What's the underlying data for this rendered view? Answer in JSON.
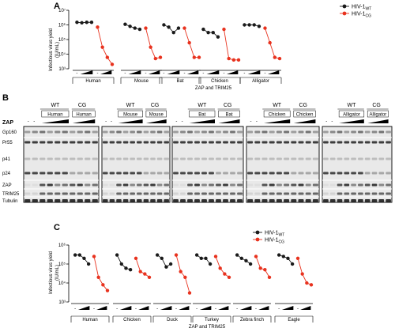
{
  "panel_labels": {
    "a": "A",
    "b": "B",
    "c": "C"
  },
  "colors": {
    "wt": "#1a1a1a",
    "cg": "#e8321e",
    "gel_bg": "#e9e9e9"
  },
  "panelA": {
    "ylabel": "Infectious virus yield",
    "yunit": "(IU/mL)",
    "yticks": [
      "10⁷",
      "10⁶",
      "10⁵",
      "10⁴",
      "10³"
    ],
    "xlabel": "ZAP and TRIM25",
    "groups": [
      "Human",
      "Mouse",
      "Bat",
      "Chicken",
      "Alligator"
    ],
    "dash": "-",
    "legend": [
      {
        "base": "HIV-1",
        "sub": "WT"
      },
      {
        "base": "HIV-1",
        "sub": "CG"
      }
    ]
  },
  "panelB": {
    "species": [
      "Human",
      "Mouse",
      "Bat",
      "Chicken",
      "Alligator"
    ],
    "top_labels": [
      "WT",
      "CG"
    ],
    "zap_label": "ZAP",
    "dash": "-",
    "row_labels": [
      "Gp160",
      "Pr55",
      "p41",
      "p24",
      "ZAP",
      "TRIM25",
      "Tubulin"
    ]
  },
  "panelC": {
    "ylabel": "Infectious virus yield",
    "yunit": "(IU/mL)",
    "yticks": [
      "10⁶",
      "10⁵",
      "10⁴",
      "10³"
    ],
    "xlabel": "ZAP and TRIM25",
    "groups": [
      "Human",
      "Chicken",
      "Duck",
      "Turkey",
      "Zebra finch",
      "Eagle"
    ],
    "dash": "-",
    "legend": [
      {
        "base": "HIV-1",
        "sub": "WT"
      },
      {
        "base": "HIV-1",
        "sub": "CG"
      }
    ]
  },
  "chart_data": [
    {
      "type": "line",
      "id": "panelA",
      "ylabel": "Infectious virus yield (IU/mL)",
      "xlabel": "ZAP and TRIM25",
      "yscale": "log",
      "ylim": [
        1000,
        10000000
      ],
      "groups": [
        "Human",
        "Mouse",
        "Bat",
        "Chicken",
        "Alligator"
      ],
      "x": [
        "-",
        "1",
        "2",
        "3"
      ],
      "series": [
        {
          "name": "HIV-1WT",
          "values": [
            [
              1500000,
              1400000,
              1500000,
              1500000
            ],
            [
              1100000,
              800000,
              600000,
              500000
            ],
            [
              1000000,
              700000,
              300000,
              600000
            ],
            [
              500000,
              300000,
              300000,
              150000
            ],
            [
              1000000,
              1000000,
              1000000,
              800000
            ]
          ]
        },
        {
          "name": "HIV-1CG",
          "values": [
            [
              700000,
              30000,
              6000,
              2000
            ],
            [
              600000,
              30000,
              5000,
              6000
            ],
            [
              600000,
              60000,
              6000,
              6000
            ],
            [
              500000,
              5000,
              4000,
              4000
            ],
            [
              600000,
              60000,
              6000,
              5000
            ]
          ]
        }
      ]
    },
    {
      "type": "line",
      "id": "panelC",
      "ylabel": "Infectious virus yield (IU/mL)",
      "xlabel": "ZAP and TRIM25",
      "yscale": "log",
      "ylim": [
        1000,
        1000000
      ],
      "groups": [
        "Human",
        "Chicken",
        "Duck",
        "Turkey",
        "Zebra finch",
        "Eagle"
      ],
      "x": [
        "-",
        "1",
        "2",
        "3"
      ],
      "series": [
        {
          "name": "HIV-1WT",
          "values": [
            [
              300000,
              300000,
              200000,
              100000
            ],
            [
              300000,
              100000,
              60000,
              50000
            ],
            [
              300000,
              200000,
              70000,
              100000
            ],
            [
              300000,
              200000,
              200000,
              100000
            ],
            [
              300000,
              200000,
              150000,
              100000
            ],
            [
              300000,
              250000,
              200000,
              100000
            ]
          ]
        },
        {
          "name": "HIV-1CG",
          "values": [
            [
              250000,
              20000,
              8000,
              4000
            ],
            [
              200000,
              40000,
              30000,
              20000
            ],
            [
              300000,
              40000,
              20000,
              3000
            ],
            [
              250000,
              60000,
              30000,
              20000
            ],
            [
              250000,
              60000,
              50000,
              20000
            ],
            [
              200000,
              30000,
              10000,
              8000
            ]
          ]
        }
      ]
    }
  ]
}
